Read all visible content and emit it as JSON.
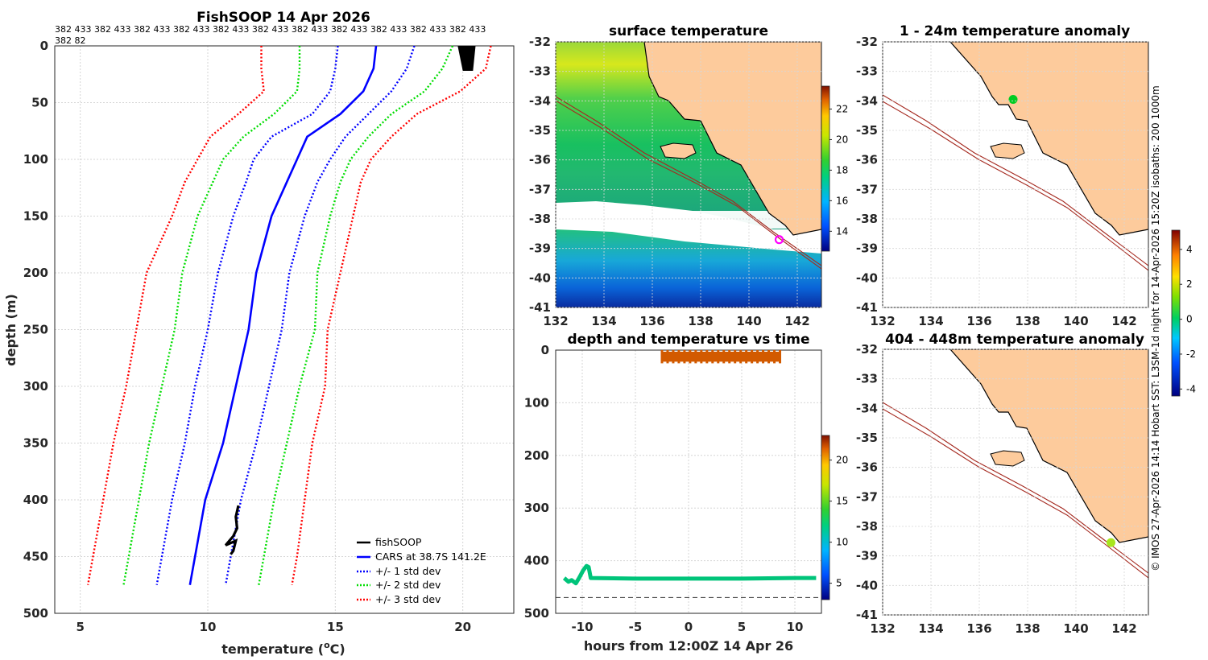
{
  "figure": {
    "credit": "© IMOS 27-Apr-2026 14:14 Hobart SST: L3SM-1d night for 14-Apr-2026 15:20Z isobaths: 200  1000m",
    "colors": {
      "land": "#fdcb9c",
      "isobath": "#a52a20",
      "grid": "#d6d6d6"
    }
  },
  "chart_data": [
    {
      "id": "profile",
      "type": "line",
      "title": "FishSOOP 14 Apr 2026",
      "xlabel": "temperature (°C)",
      "xlabel_main": "temperature (",
      "xlabel_sup": "o",
      "xlabel_end": "C)",
      "ylabel": "depth (m)",
      "xlim": [
        4,
        22
      ],
      "ylim": [
        500,
        0
      ],
      "xticks": [
        5,
        10,
        15,
        20
      ],
      "yticks": [
        0,
        50,
        100,
        150,
        200,
        250,
        300,
        350,
        400,
        450,
        500
      ],
      "top_annotation": [
        "382 433 382 433 382 433 382 433 382 433 382 433 382 433 382 433 382 433 382 433 382 433",
        "382 82"
      ],
      "legend": [
        "fishSOOP",
        "CARS at 38.7S 141.2E",
        "+/- 1 std dev",
        "+/- 2 std dev",
        "+/- 3 std dev"
      ],
      "depths": [
        0,
        20,
        40,
        60,
        80,
        100,
        120,
        150,
        200,
        250,
        300,
        350,
        400,
        450,
        475
      ],
      "series": [
        {
          "name": "CARS mean",
          "color": "#0000ff",
          "style": "solid",
          "values": [
            16.6,
            16.5,
            16.1,
            15.2,
            13.9,
            13.5,
            13.1,
            12.5,
            11.9,
            11.6,
            11.1,
            10.6,
            9.9,
            9.5,
            9.3
          ]
        },
        {
          "name": "+1 std",
          "color": "#0000ff",
          "style": "dotted",
          "values": [
            18.1,
            17.8,
            17.2,
            16.3,
            15.4,
            14.8,
            14.3,
            13.8,
            13.2,
            12.9,
            12.4,
            11.9,
            11.3,
            10.9,
            10.7
          ]
        },
        {
          "name": "-1 std",
          "color": "#0000ff",
          "style": "dotted",
          "values": [
            15.1,
            15.0,
            14.8,
            14.1,
            12.5,
            11.8,
            11.5,
            11.0,
            10.4,
            10.0,
            9.5,
            9.1,
            8.6,
            8.2,
            8.0
          ]
        },
        {
          "name": "+2 std",
          "color": "#00dd00",
          "style": "dotted",
          "values": [
            19.6,
            19.2,
            18.5,
            17.2,
            16.3,
            15.6,
            15.2,
            14.8,
            14.3,
            14.2,
            13.6,
            13.1,
            12.6,
            12.2,
            12.0
          ]
        },
        {
          "name": "-2 std",
          "color": "#00dd00",
          "style": "dotted",
          "values": [
            13.6,
            13.6,
            13.5,
            12.6,
            11.4,
            10.6,
            10.2,
            9.6,
            9.0,
            8.7,
            8.2,
            7.7,
            7.3,
            6.9,
            6.7
          ]
        },
        {
          "name": "+3 std",
          "color": "#ff0000",
          "style": "dotted",
          "values": [
            21.1,
            20.9,
            19.9,
            18.2,
            17.2,
            16.4,
            16.0,
            15.7,
            15.2,
            14.7,
            14.6,
            14.1,
            13.8,
            13.5,
            13.3
          ]
        },
        {
          "name": "-3 std",
          "color": "#ff0000",
          "style": "dotted",
          "values": [
            12.1,
            12.1,
            12.2,
            11.2,
            10.1,
            9.6,
            9.1,
            8.6,
            7.6,
            7.2,
            6.8,
            6.3,
            5.9,
            5.5,
            5.3
          ]
        }
      ],
      "fishsoop_deep": [
        [
          11.2,
          405
        ],
        [
          11.1,
          415
        ],
        [
          11.15,
          425
        ],
        [
          11.0,
          432
        ],
        [
          10.7,
          440
        ],
        [
          11.1,
          436
        ],
        [
          11.0,
          445
        ],
        [
          10.9,
          448
        ]
      ],
      "fishsoop_surface": [
        [
          19.8,
          0
        ],
        [
          20.5,
          0
        ],
        [
          20.4,
          22
        ],
        [
          20.0,
          22
        ]
      ]
    },
    {
      "id": "sst_map",
      "type": "heatmap",
      "title": "surface temperature",
      "xlim": [
        132,
        143
      ],
      "ylim": [
        -41,
        -32
      ],
      "xticks": [
        132,
        134,
        136,
        138,
        140,
        142
      ],
      "yticks": [
        -32,
        -33,
        -34,
        -35,
        -36,
        -37,
        -38,
        -39,
        -40,
        -41
      ],
      "colorbar": {
        "ticks": [
          14,
          16,
          18,
          20,
          22
        ],
        "range": [
          12.7,
          23.5
        ]
      },
      "marker": {
        "lon": 141.25,
        "lat": -38.7,
        "color": "#ff00ff"
      }
    },
    {
      "id": "depth_time",
      "type": "scatter",
      "title": "depth and temperature vs time",
      "xlabel": "hours from 12:00Z 14 Apr 26",
      "xlim": [
        -12.5,
        12.5
      ],
      "ylim": [
        500,
        0
      ],
      "xticks": [
        -10,
        -5,
        0,
        5,
        10
      ],
      "yticks": [
        0,
        100,
        200,
        300,
        400,
        500
      ],
      "colorbar": {
        "ticks": [
          5,
          10,
          15,
          20
        ],
        "range": [
          3,
          23
        ]
      },
      "bottom_depth": 470,
      "deep_track": {
        "x": [
          -11.7,
          -11.3,
          -11,
          -10.6,
          -10.3,
          -9.9,
          -9.6,
          -9.4,
          -9.2,
          -5,
          0,
          5,
          10,
          12
        ],
        "y": [
          433,
          440,
          437,
          443,
          433,
          418,
          410,
          412,
          433,
          434,
          434,
          434,
          433,
          433
        ],
        "color": "#00c47a"
      },
      "surface_track": {
        "x0": -2.5,
        "x1": 8.6,
        "y0": 3,
        "y1": 22,
        "color": "#d25a00"
      }
    },
    {
      "id": "anom_top",
      "type": "heatmap",
      "title": "1 - 24m temperature anomaly",
      "xlim": [
        132,
        143
      ],
      "ylim": [
        -41,
        -32
      ],
      "xticks": [
        132,
        134,
        136,
        138,
        140,
        142
      ],
      "yticks": [
        -32,
        -33,
        -34,
        -35,
        -36,
        -37,
        -38,
        -39,
        -40,
        -41
      ],
      "marker": {
        "lon": 137.4,
        "lat": -33.95,
        "color": "#00cc22"
      }
    },
    {
      "id": "anom_bottom",
      "type": "heatmap",
      "title": "404 - 448m temperature anomaly",
      "xlim": [
        132,
        143
      ],
      "ylim": [
        -41,
        -32
      ],
      "xticks": [
        132,
        134,
        136,
        138,
        140,
        142
      ],
      "yticks": [
        -32,
        -33,
        -34,
        -35,
        -36,
        -37,
        -38,
        -39,
        -40,
        -41
      ],
      "marker": {
        "lon": 141.45,
        "lat": -38.55,
        "color": "#a8e61d"
      }
    },
    {
      "id": "anom_colorbar",
      "type": "colorbar",
      "ticks": [
        4,
        2,
        0,
        -2,
        -4
      ],
      "range": [
        -4.4,
        5.1
      ]
    }
  ]
}
